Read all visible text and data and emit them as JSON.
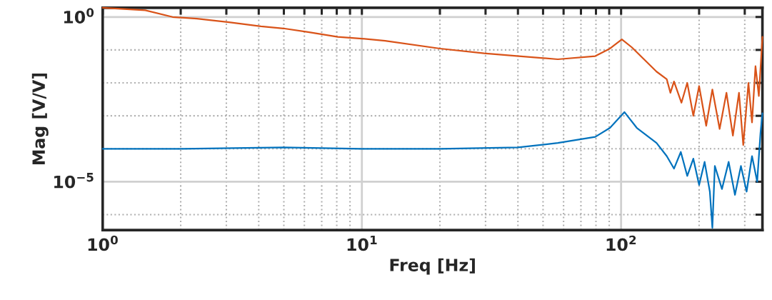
{
  "chart_data": {
    "type": "line",
    "xlabel": "Freq [Hz]",
    "ylabel": "Mag [V/V]",
    "log": "xy",
    "grid": true,
    "xlim": [
      1,
      351
    ],
    "ylim": [
      3.4e-07,
      1.9
    ],
    "xticks": [
      {
        "value": 1,
        "label": "10$^{0}$"
      },
      {
        "value": 2,
        "label": null
      },
      {
        "value": 3,
        "label": null
      },
      {
        "value": 4,
        "label": null
      },
      {
        "value": 5,
        "label": null
      },
      {
        "value": 6,
        "label": null
      },
      {
        "value": 7,
        "label": null
      },
      {
        "value": 8,
        "label": null
      },
      {
        "value": 9,
        "label": null
      },
      {
        "value": 10,
        "label": "10$^{1}$"
      },
      {
        "value": 20,
        "label": null
      },
      {
        "value": 30,
        "label": null
      },
      {
        "value": 40,
        "label": null
      },
      {
        "value": 50,
        "label": null
      },
      {
        "value": 60,
        "label": null
      },
      {
        "value": 70,
        "label": null
      },
      {
        "value": 80,
        "label": null
      },
      {
        "value": 90,
        "label": null
      },
      {
        "value": 100,
        "label": "10$^{2}$"
      },
      {
        "value": 200,
        "label": null
      },
      {
        "value": 300,
        "label": null
      }
    ],
    "yticks": [
      {
        "value": 1e-06,
        "label": null
      },
      {
        "value": 1e-05,
        "label": "10$^{−5}$"
      },
      {
        "value": 0.0001,
        "label": null
      },
      {
        "value": 0.001,
        "label": null
      },
      {
        "value": 0.01,
        "label": null
      },
      {
        "value": 0.1,
        "label": null
      },
      {
        "value": 1,
        "label": "10$^{0}$"
      }
    ],
    "series": [
      {
        "color": "#d95319",
        "x": [
          1,
          1.46,
          1.86,
          2.31,
          3.07,
          4.08,
          4.98,
          6.2,
          8.07,
          10,
          12.3,
          20,
          29.6,
          40.3,
          57,
          79.5,
          90.6,
          100.7,
          110,
          137,
          150,
          155,
          160,
          171,
          180,
          190,
          200,
          213,
          225,
          240,
          255,
          270,
          285,
          296,
          310,
          320,
          330,
          340,
          351
        ],
        "values": [
          1.9,
          1.6,
          1.0,
          0.89,
          0.69,
          0.52,
          0.45,
          0.35,
          0.25,
          0.22,
          0.19,
          0.11,
          0.079,
          0.065,
          0.052,
          0.065,
          0.11,
          0.21,
          0.12,
          0.022,
          0.013,
          0.005,
          0.011,
          0.0025,
          0.01,
          0.001,
          0.008,
          0.0005,
          0.0063,
          0.0004,
          0.005,
          0.00025,
          0.005,
          0.00013,
          0.01,
          0.00063,
          0.032,
          0.004,
          0.25
        ]
      },
      {
        "color": "#0072bd",
        "x": [
          1,
          2,
          5,
          10,
          20,
          40,
          57,
          79.5,
          90.6,
          103,
          115,
          137,
          150,
          160,
          170,
          180,
          190,
          200,
          210,
          220,
          225,
          230,
          245,
          260,
          275,
          290,
          305,
          320,
          335,
          345,
          351
        ],
        "values": [
          0.0001,
          0.0001,
          0.00011,
          0.0001,
          0.0001,
          0.00011,
          0.00015,
          0.00023,
          0.00043,
          0.0013,
          0.00043,
          0.00015,
          6e-05,
          2.5e-05,
          8e-05,
          1.5e-05,
          5e-05,
          8e-06,
          4e-05,
          5e-06,
          4e-07,
          3e-05,
          6e-06,
          4e-05,
          4e-06,
          3e-05,
          5e-06,
          6e-05,
          1e-05,
          0.0003,
          0.0012
        ]
      }
    ]
  }
}
